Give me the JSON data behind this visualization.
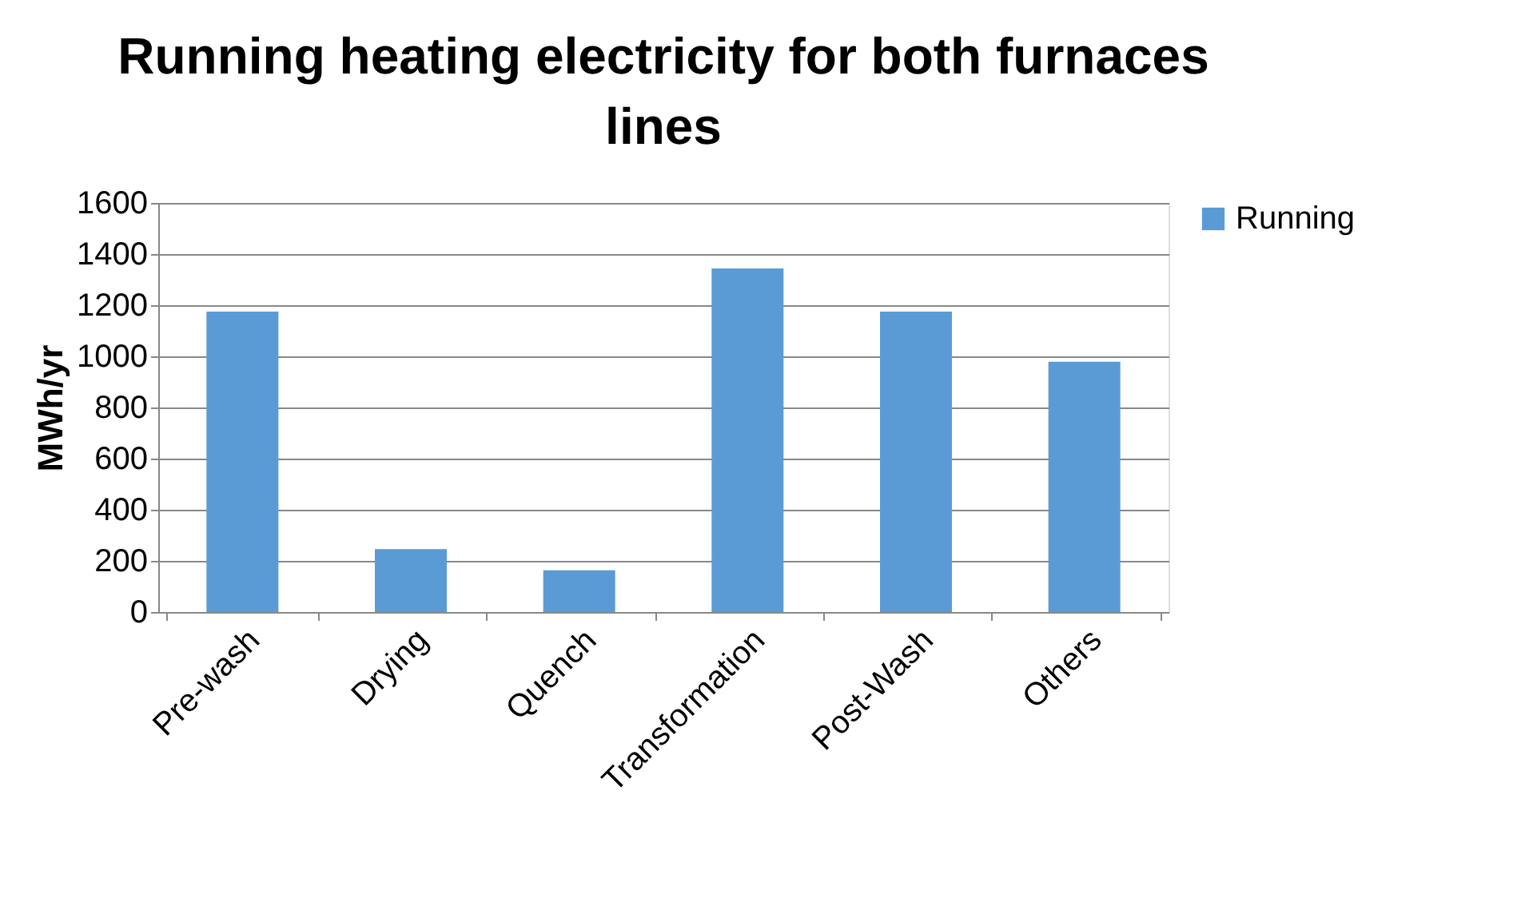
{
  "chart_data": {
    "type": "bar",
    "title": "Running heating electricity for both furnaces lines",
    "ylabel": "MWh/yr",
    "categories": [
      "Pre-wash",
      "Drying",
      "Quench",
      "Transformation",
      "Post-Wash",
      "Others"
    ],
    "series": [
      {
        "name": "Running",
        "color": "#5b9bd5",
        "values": [
          1175,
          246,
          163,
          1344,
          1175,
          979
        ]
      }
    ],
    "ylim": [
      0,
      1600
    ],
    "yticks": [
      0,
      200,
      400,
      600,
      800,
      1000,
      1200,
      1400,
      1600
    ],
    "grid": "y",
    "legend": "right"
  }
}
